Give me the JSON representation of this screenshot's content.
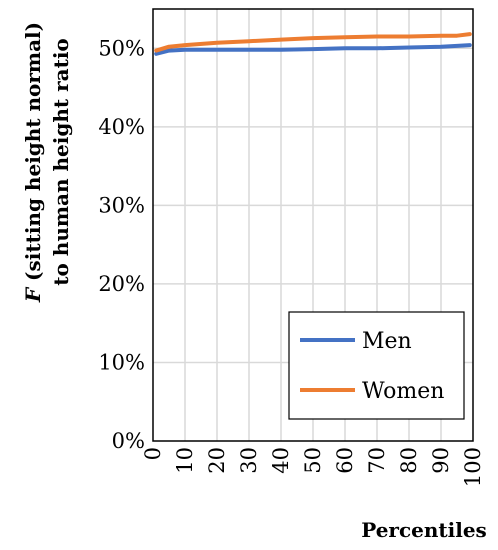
{
  "chart_data": {
    "type": "line",
    "title": "",
    "xlabel": "Percentiles",
    "ylabel_line1_italic": "F",
    "ylabel_line1_rest": " (sitting height normal)",
    "ylabel_line2": "to human height ratio",
    "xlim": [
      0,
      100
    ],
    "ylim": [
      0,
      0.55
    ],
    "x_ticks": [
      0,
      10,
      20,
      30,
      40,
      50,
      60,
      70,
      80,
      90,
      100
    ],
    "x_tick_labels": [
      "0",
      "10",
      "20",
      "30",
      "40",
      "50",
      "60",
      "70",
      "80",
      "90",
      "100"
    ],
    "y_ticks": [
      0,
      0.1,
      0.2,
      0.3,
      0.4,
      0.5
    ],
    "y_tick_labels": [
      "0%",
      "10%",
      "20%",
      "30%",
      "40%",
      "50%"
    ],
    "grid": true,
    "legend_position": "bottom-right",
    "x": [
      1,
      5,
      10,
      20,
      30,
      40,
      50,
      60,
      70,
      80,
      90,
      95,
      99
    ],
    "series": [
      {
        "name": "Men",
        "color": "#4472C4",
        "values": [
          0.493,
          0.497,
          0.498,
          0.498,
          0.498,
          0.498,
          0.499,
          0.5,
          0.5,
          0.501,
          0.502,
          0.503,
          0.504
        ]
      },
      {
        "name": "Women",
        "color": "#ED7D31",
        "values": [
          0.497,
          0.502,
          0.504,
          0.507,
          0.509,
          0.511,
          0.513,
          0.514,
          0.515,
          0.515,
          0.516,
          0.516,
          0.518
        ]
      }
    ]
  }
}
